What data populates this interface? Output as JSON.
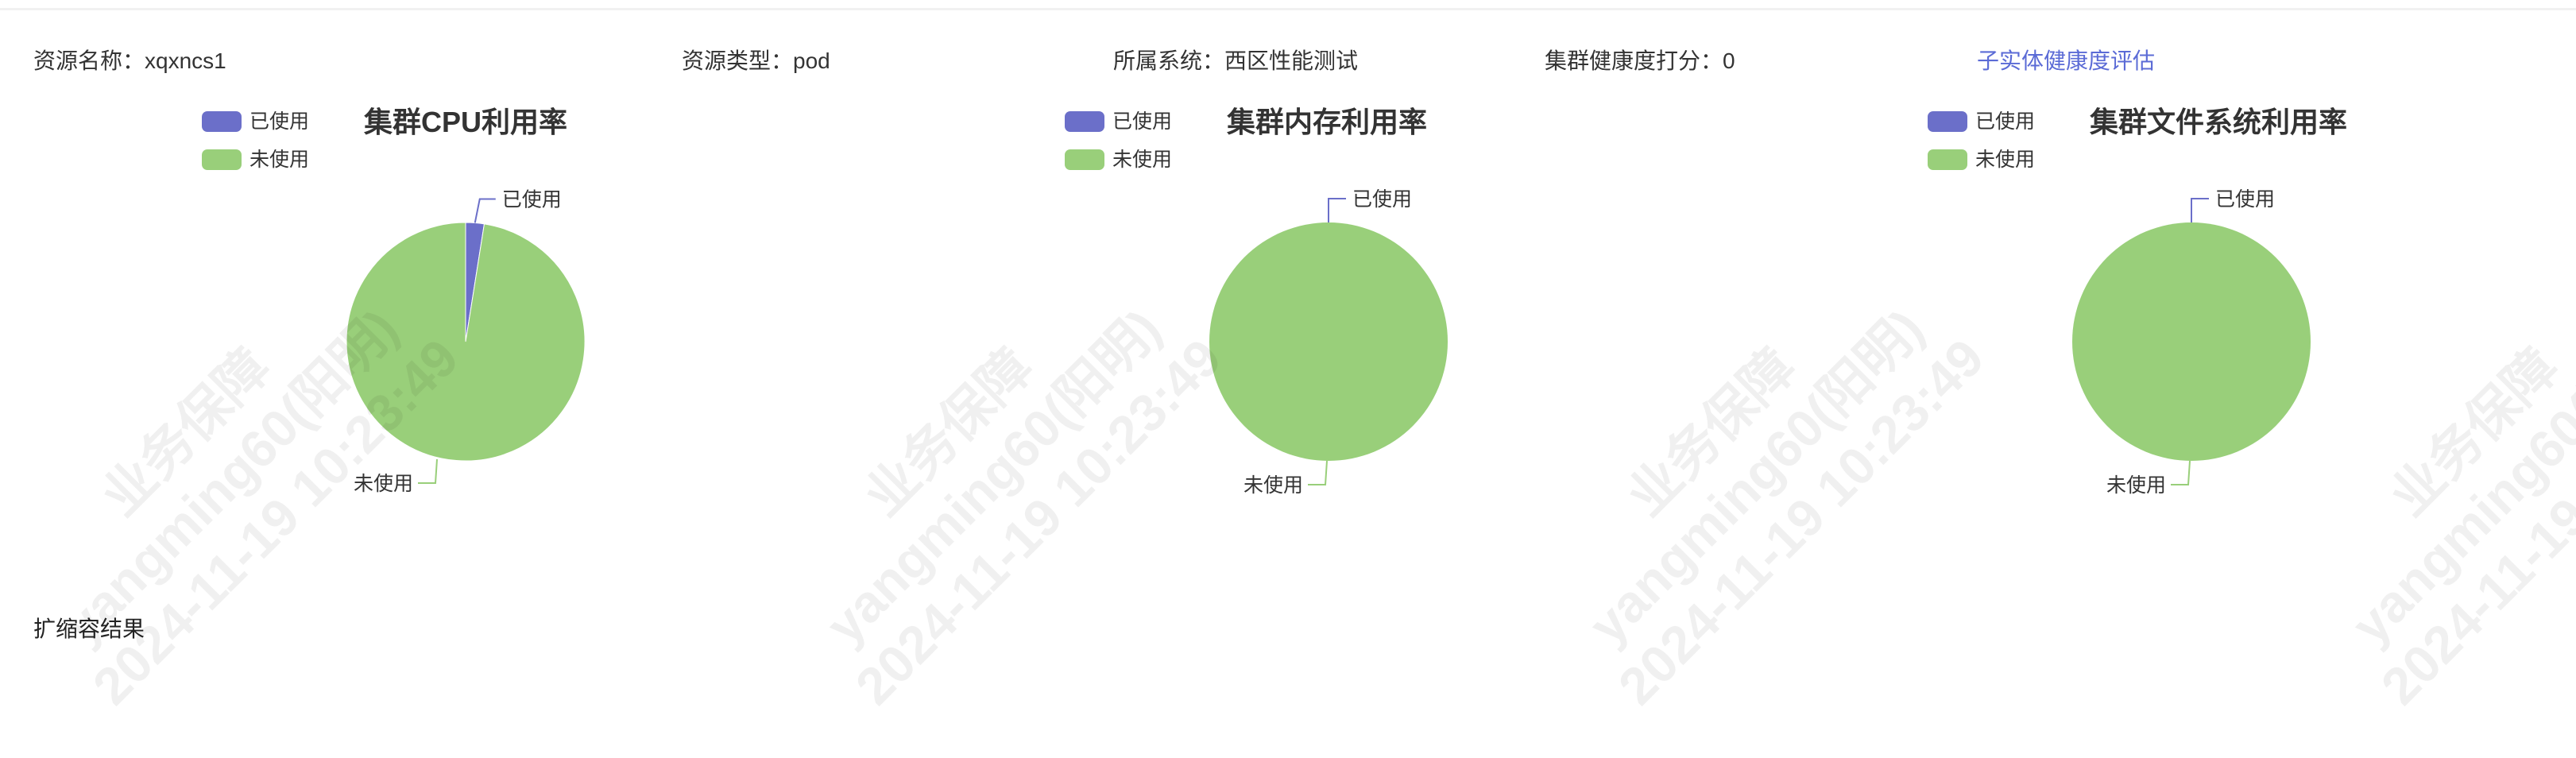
{
  "info": {
    "resource_name_label": "资源名称：",
    "resource_name_value": "xqxncs1",
    "resource_type_label": "资源类型：",
    "resource_type_value": "pod",
    "system_label": "所属系统：",
    "system_value": "西区性能测试",
    "health_label": "集群健康度打分：",
    "health_value": "0",
    "sub_entity_link": "子实体健康度评估"
  },
  "colors": {
    "used": "#6b6fc9",
    "unused": "#99cf7a",
    "link": "#5b6bd6"
  },
  "legend": {
    "used": "已使用",
    "unused": "未使用"
  },
  "chart_data": [
    {
      "type": "pie",
      "title": "集群CPU利用率",
      "legend_placement": "top-left",
      "slices": [
        {
          "name": "已使用",
          "value": 2.5
        },
        {
          "name": "未使用",
          "value": 97.5
        }
      ]
    },
    {
      "type": "pie",
      "title": "集群内存利用率",
      "legend_placement": "top-left",
      "slices": [
        {
          "name": "已使用",
          "value": 0
        },
        {
          "name": "未使用",
          "value": 100
        }
      ]
    },
    {
      "type": "pie",
      "title": "集群文件系统利用率",
      "legend_placement": "top-left",
      "slices": [
        {
          "name": "已使用",
          "value": 0
        },
        {
          "name": "未使用",
          "value": 100
        }
      ]
    }
  ],
  "bottom_title": "扩缩容结果",
  "watermark": {
    "line1": "业务保障",
    "line2": "yangming60(阳明)",
    "line3": "2024-11-19 10:23:49"
  }
}
